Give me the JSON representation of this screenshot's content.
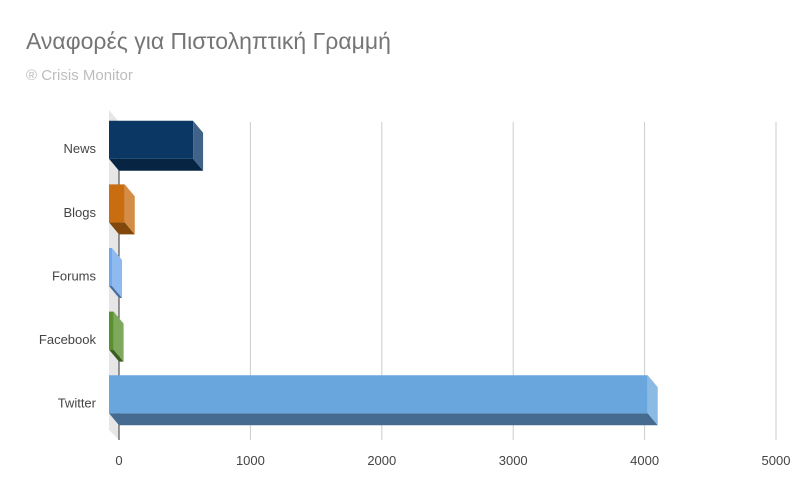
{
  "title": "Αναφορές για Πιστοληπτική Γραμμή",
  "subtitle": "® Crisis Monitor",
  "chart_data": {
    "type": "bar",
    "orientation": "horizontal",
    "style": "3d",
    "title": "Αναφορές για Πιστοληπτική Γραμμή",
    "subtitle": "® Crisis Monitor",
    "categories": [
      "News",
      "Blogs",
      "Forums",
      "Facebook",
      "Twitter"
    ],
    "values": [
      640,
      120,
      5,
      35,
      4100
    ],
    "colors": [
      "#0b3765",
      "#c86d10",
      "#6ea7ec",
      "#59912f",
      "#6aa6de"
    ],
    "xlim": [
      0,
      5000
    ],
    "xticks": [
      "0",
      "1000",
      "2000",
      "3000",
      "4000",
      "5000"
    ],
    "xlabel": "",
    "ylabel": "",
    "grid": true,
    "legend": "none"
  }
}
